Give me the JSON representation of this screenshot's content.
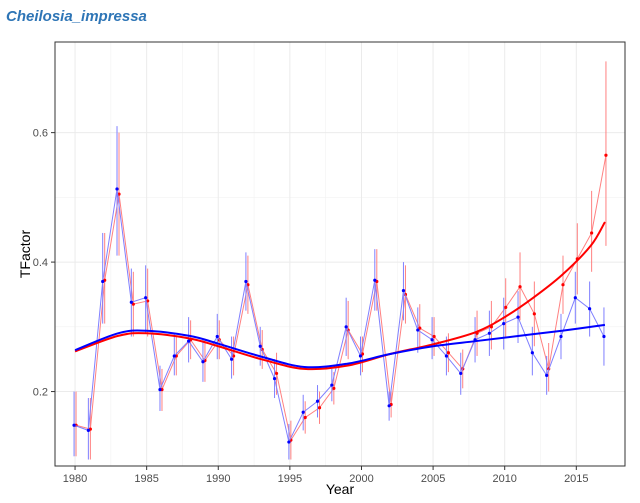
{
  "title": "Cheilosia_impressa",
  "chart_data": {
    "type": "line",
    "title": "Cheilosia_impressa",
    "xlabel": "Year",
    "ylabel": "TFactor",
    "xlim": [
      1978.6,
      2018.4
    ],
    "ylim": [
      0.085,
      0.74
    ],
    "xticks": [
      1980,
      1985,
      1990,
      1995,
      2000,
      2005,
      2010,
      2015
    ],
    "yticks": [
      0.2,
      0.4,
      0.6
    ],
    "grid": true,
    "legend": "none",
    "x": [
      1980,
      1981,
      1982,
      1983,
      1984,
      1985,
      1986,
      1987,
      1988,
      1989,
      1990,
      1991,
      1992,
      1993,
      1994,
      1995,
      1996,
      1997,
      1998,
      1999,
      2000,
      2001,
      2002,
      2003,
      2004,
      2005,
      2006,
      2007,
      2008,
      2009,
      2010,
      2011,
      2012,
      2013,
      2014,
      2015,
      2016,
      2017
    ],
    "series": [
      {
        "color": "#ff0000",
        "values": [
          0.148,
          0.142,
          0.372,
          0.505,
          0.335,
          0.34,
          0.203,
          0.255,
          0.28,
          0.248,
          0.28,
          0.255,
          0.365,
          0.265,
          0.228,
          0.125,
          0.16,
          0.175,
          0.205,
          0.295,
          0.258,
          0.37,
          0.18,
          0.35,
          0.298,
          0.285,
          0.26,
          0.235,
          0.29,
          0.3,
          0.33,
          0.362,
          0.32,
          0.235,
          0.365,
          0.405,
          0.445,
          0.565
        ],
        "lower": [
          0.1,
          0.095,
          0.305,
          0.41,
          0.285,
          0.285,
          0.17,
          0.225,
          0.25,
          0.215,
          0.25,
          0.225,
          0.32,
          0.235,
          0.195,
          0.095,
          0.135,
          0.15,
          0.18,
          0.25,
          0.23,
          0.325,
          0.16,
          0.305,
          0.265,
          0.255,
          0.23,
          0.205,
          0.255,
          0.265,
          0.285,
          0.31,
          0.27,
          0.2,
          0.32,
          0.35,
          0.385,
          0.425
        ],
        "upper": [
          0.2,
          0.19,
          0.445,
          0.6,
          0.385,
          0.39,
          0.235,
          0.285,
          0.31,
          0.28,
          0.31,
          0.285,
          0.41,
          0.295,
          0.26,
          0.155,
          0.185,
          0.2,
          0.23,
          0.34,
          0.285,
          0.42,
          0.2,
          0.395,
          0.335,
          0.315,
          0.29,
          0.265,
          0.325,
          0.34,
          0.375,
          0.415,
          0.37,
          0.275,
          0.41,
          0.46,
          0.51,
          0.71
        ],
        "trend": [
          [
            1980,
            0.262
          ],
          [
            1983,
            0.286
          ],
          [
            1985,
            0.29
          ],
          [
            1988,
            0.282
          ],
          [
            1990,
            0.27
          ],
          [
            1993,
            0.25
          ],
          [
            1996,
            0.235
          ],
          [
            1999,
            0.24
          ],
          [
            2002,
            0.258
          ],
          [
            2005,
            0.273
          ],
          [
            2008,
            0.292
          ],
          [
            2010,
            0.315
          ],
          [
            2012,
            0.345
          ],
          [
            2014,
            0.38
          ],
          [
            2016,
            0.425
          ],
          [
            2017,
            0.462
          ]
        ]
      },
      {
        "color": "#0000ff",
        "values": [
          0.148,
          0.14,
          0.37,
          0.513,
          0.338,
          0.345,
          0.203,
          0.255,
          0.278,
          0.246,
          0.285,
          0.25,
          0.37,
          0.27,
          0.22,
          0.122,
          0.168,
          0.185,
          0.21,
          0.3,
          0.255,
          0.372,
          0.178,
          0.356,
          0.295,
          0.28,
          0.255,
          0.228,
          0.28,
          0.29,
          0.305,
          0.315,
          0.26,
          0.225,
          0.285,
          0.345,
          0.328,
          0.285
        ],
        "lower": [
          0.1,
          0.095,
          0.305,
          0.41,
          0.285,
          0.29,
          0.17,
          0.225,
          0.245,
          0.215,
          0.25,
          0.22,
          0.325,
          0.24,
          0.19,
          0.095,
          0.14,
          0.16,
          0.185,
          0.255,
          0.225,
          0.325,
          0.155,
          0.31,
          0.26,
          0.25,
          0.225,
          0.195,
          0.245,
          0.255,
          0.265,
          0.275,
          0.225,
          0.195,
          0.25,
          0.305,
          0.285,
          0.24
        ],
        "upper": [
          0.2,
          0.19,
          0.445,
          0.61,
          0.39,
          0.395,
          0.24,
          0.29,
          0.315,
          0.28,
          0.32,
          0.285,
          0.415,
          0.3,
          0.25,
          0.15,
          0.195,
          0.21,
          0.235,
          0.345,
          0.285,
          0.42,
          0.2,
          0.4,
          0.33,
          0.315,
          0.285,
          0.26,
          0.315,
          0.325,
          0.345,
          0.355,
          0.3,
          0.255,
          0.32,
          0.385,
          0.37,
          0.33
        ],
        "trend": [
          [
            1980,
            0.264
          ],
          [
            1983,
            0.29
          ],
          [
            1985,
            0.294
          ],
          [
            1988,
            0.286
          ],
          [
            1990,
            0.274
          ],
          [
            1993,
            0.254
          ],
          [
            1996,
            0.238
          ],
          [
            1999,
            0.243
          ],
          [
            2002,
            0.258
          ],
          [
            2005,
            0.27
          ],
          [
            2008,
            0.278
          ],
          [
            2011,
            0.286
          ],
          [
            2014,
            0.294
          ],
          [
            2017,
            0.303
          ]
        ]
      }
    ]
  }
}
